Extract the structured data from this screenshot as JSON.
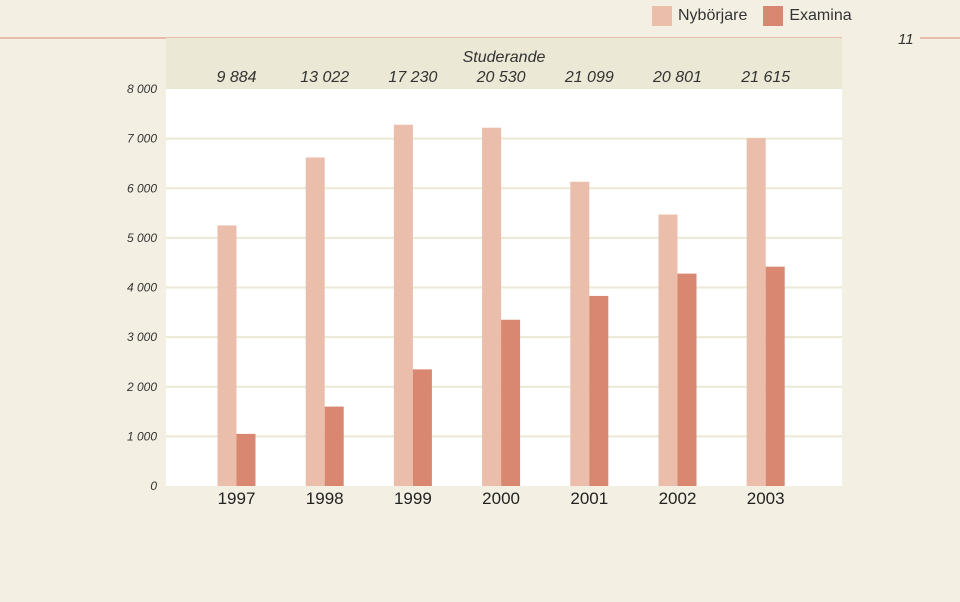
{
  "chart_data": {
    "type": "bar",
    "categories": [
      "1997",
      "1998",
      "1999",
      "2000",
      "2001",
      "2002",
      "2003"
    ],
    "series": [
      {
        "name": "Nybörjare",
        "values": [
          5250,
          6620,
          7280,
          7220,
          6130,
          5470,
          7010
        ],
        "color": "#ebbdab"
      },
      {
        "name": "Examina",
        "values": [
          1050,
          1600,
          2350,
          3350,
          3830,
          4280,
          4420
        ],
        "color": "#d98770"
      }
    ],
    "ylim": [
      0,
      8000
    ],
    "yticks": [
      "0",
      "1 000",
      "2 000",
      "3 000",
      "4 000",
      "5 000",
      "6 000",
      "7 000",
      "8 000"
    ],
    "studerande_label": "Studerande",
    "studerande_values": [
      "9 884",
      "13 022",
      "17 230",
      "20 530",
      "21 099",
      "20 801",
      "21 615"
    ],
    "legend_position": "top-right",
    "grid": true
  },
  "page_number": "11",
  "colors": {
    "background": "#f3f0e3",
    "plot_background": "#ffffff",
    "header_band": "#ebe8d5",
    "grid_line": "#ebe8d5",
    "rule_line": "#d98770"
  }
}
